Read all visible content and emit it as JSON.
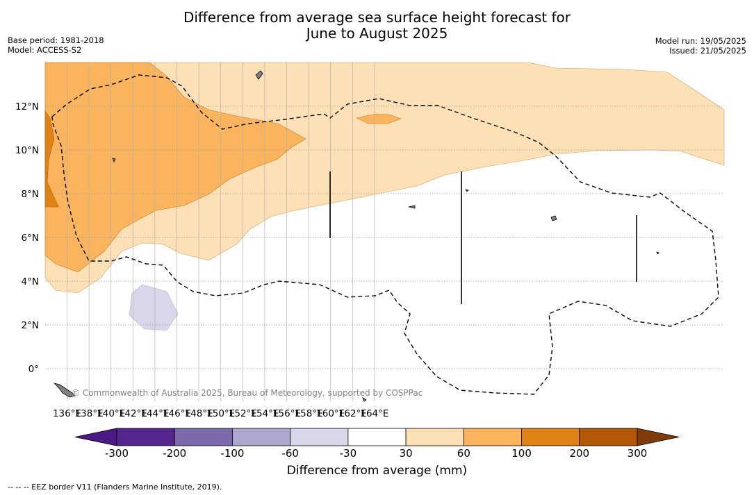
{
  "header": {
    "title_line1": "Difference from average sea surface height forecast for",
    "title_line2": "June to August 2025",
    "base_period": "Base period: 1981-2018",
    "model": "Model: ACCESS-S2",
    "model_run": "Model run: 19/05/2025",
    "issued": "Issued: 21/05/2025"
  },
  "map": {
    "lon_ticks": [
      "136°E",
      "138°E",
      "140°E",
      "142°E",
      "144°E",
      "146°E",
      "148°E",
      "150°E",
      "152°E",
      "154°E",
      "156°E",
      "158°E",
      "160°E",
      "162°E",
      "164°E"
    ],
    "lat_ticks": [
      "12°N",
      "10°N",
      "8°N",
      "6°N",
      "4°N",
      "2°N",
      "0°"
    ],
    "copyright": "© Commonwealth of Australia 2025, Bureau of Meteorology, supported by COSPPac",
    "colors": {
      "land": "#808080",
      "eez_border": "#000000",
      "grid": "#999999"
    }
  },
  "colorbar": {
    "title": "Difference from average (mm)",
    "boundaries": [
      "-300",
      "-200",
      "-100",
      "-60",
      "-30",
      "30",
      "60",
      "100",
      "200",
      "300"
    ],
    "colors": [
      "#4b1a85",
      "#54278f",
      "#7c6aab",
      "#aea8d1",
      "#d8d7ea",
      "#ffffff",
      "#fde0b5",
      "#f9b45d",
      "#e08214",
      "#b35806",
      "#7f3b08"
    ]
  },
  "footer": {
    "eez_note": "--  --  -- EEZ border V11 (Flanders Marine Institute, 2019)."
  }
}
